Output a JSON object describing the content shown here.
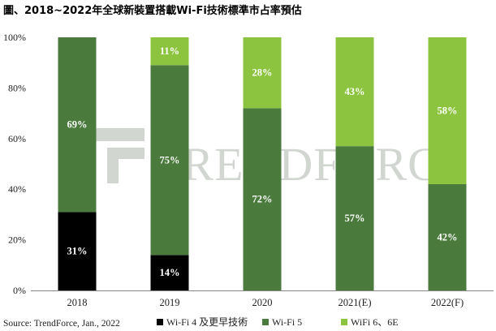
{
  "title": "圖、2018~2022年全球新裝置搭載Wi-Fi技術標準市占率預估",
  "source": "Source: TrendForce, Jan., 2022",
  "watermark": "TRENDFORCE",
  "colors": {
    "wifi4": "#000000",
    "wifi5": "#4a7a3c",
    "wifi6": "#8dc43f",
    "label_dark": "#ffffff",
    "label_light": "#ffffff"
  },
  "chart_data": {
    "type": "bar",
    "stacked": true,
    "categories": [
      "2018",
      "2019",
      "2020",
      "2021(E)",
      "2022(F)"
    ],
    "series": [
      {
        "name": "Wi-Fi 4 及更早技術",
        "values": [
          31,
          14,
          0,
          0,
          0
        ]
      },
      {
        "name": "Wi-Fi 5",
        "values": [
          69,
          75,
          72,
          57,
          42
        ]
      },
      {
        "name": "WiFi 6、6E",
        "values": [
          0,
          11,
          28,
          43,
          58
        ]
      }
    ],
    "yticks": [
      "0%",
      "20%",
      "40%",
      "60%",
      "80%",
      "100%"
    ],
    "ylim": [
      0,
      100
    ],
    "grid": false,
    "legend": "bottom"
  }
}
